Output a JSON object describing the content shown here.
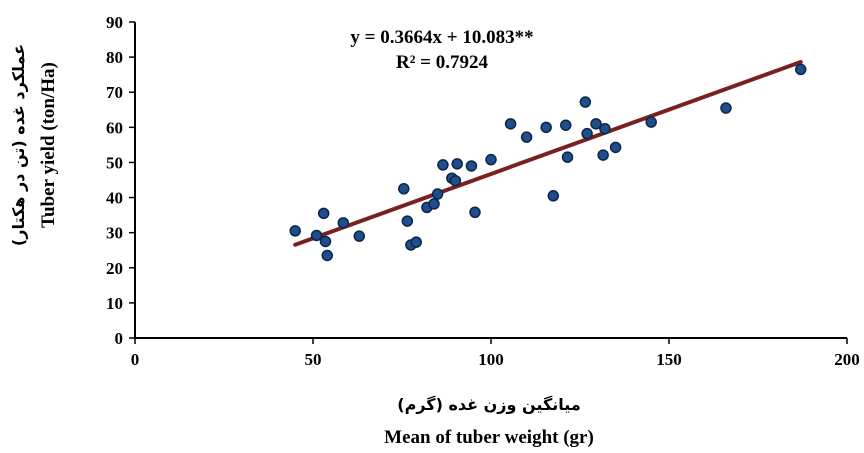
{
  "chart_data": {
    "type": "scatter",
    "xlabel": "Mean of tuber weight (gr)",
    "xlabel_fa": "میانگین وزن غده (گرم)",
    "ylabel": "Tuber yield (ton/Ha)",
    "ylabel_fa": "عملکرد غده (تن در هکتار)",
    "xlim": [
      0,
      200
    ],
    "ylim": [
      0,
      90
    ],
    "xticks": [
      0,
      50,
      100,
      150,
      200
    ],
    "yticks": [
      0,
      10,
      20,
      30,
      40,
      50,
      60,
      70,
      80,
      90
    ],
    "grid": false,
    "annotations": {
      "equation": "y = 0.3664x + 10.083**",
      "r_squared": "R² = 0.7924"
    },
    "trendline": {
      "slope": 0.3664,
      "intercept": 10.083,
      "x_range": [
        45,
        187
      ],
      "color": "#7a2020"
    },
    "marker_color": "#1f4e8c",
    "points": [
      [
        45,
        30.5
      ],
      [
        51,
        29.2
      ],
      [
        53,
        35.5
      ],
      [
        53.5,
        27.5
      ],
      [
        54,
        23.5
      ],
      [
        58.5,
        32.8
      ],
      [
        63,
        29
      ],
      [
        75.5,
        42.5
      ],
      [
        76.5,
        33.3
      ],
      [
        77.5,
        26.5
      ],
      [
        79,
        27.3
      ],
      [
        82,
        37.2
      ],
      [
        84,
        38.2
      ],
      [
        85,
        41
      ],
      [
        86.5,
        49.3
      ],
      [
        89,
        45.5
      ],
      [
        90,
        44.8
      ],
      [
        90.5,
        49.6
      ],
      [
        94.5,
        49
      ],
      [
        95.5,
        35.8
      ],
      [
        100,
        50.8
      ],
      [
        105.5,
        61
      ],
      [
        110,
        57.2
      ],
      [
        115.5,
        60
      ],
      [
        117.5,
        40.5
      ],
      [
        121,
        60.6
      ],
      [
        121.5,
        51.5
      ],
      [
        126.5,
        67.2
      ],
      [
        127,
        58.2
      ],
      [
        129.5,
        61
      ],
      [
        131.5,
        52.1
      ],
      [
        132,
        59.6
      ],
      [
        135,
        54.3
      ],
      [
        145,
        61.5
      ],
      [
        166,
        65.5
      ],
      [
        187,
        76.5
      ]
    ]
  }
}
